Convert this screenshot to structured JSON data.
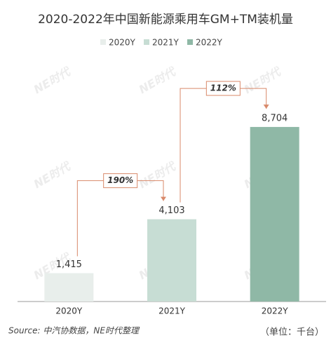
{
  "chart_data": {
    "type": "bar",
    "title": "2020-2022年中国新能源乘用车GM+TM装机量",
    "categories": [
      "2020Y",
      "2021Y",
      "2022Y"
    ],
    "values": [
      1415,
      4103,
      8704
    ],
    "value_labels": [
      "1,415",
      "4,103",
      "8,704"
    ],
    "colors": [
      "#e8eeeb",
      "#c7ddd4",
      "#8fb8a6"
    ],
    "ylim": [
      0,
      10000
    ],
    "annotations": [
      "190%",
      "112%"
    ],
    "watermark": "NE时代",
    "source": "Source: 中汽协数据，NE时代整理",
    "unit": "（单位：千台）"
  }
}
